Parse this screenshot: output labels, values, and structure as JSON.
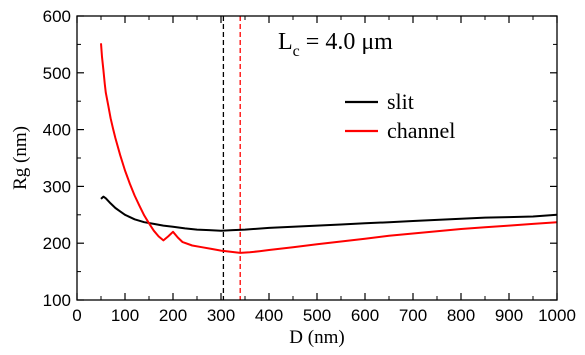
{
  "chart_data": {
    "type": "line",
    "title": "",
    "xlabel": "D (nm)",
    "ylabel": "Rg (nm)",
    "xlim": [
      0,
      1000
    ],
    "ylim": [
      100,
      600
    ],
    "x_ticks": [
      "0",
      "100",
      "200",
      "300",
      "400",
      "500",
      "600",
      "700",
      "800",
      "900",
      "1000"
    ],
    "y_ticks": [
      "100",
      "200",
      "300",
      "400",
      "500",
      "600"
    ],
    "grid": false,
    "legend_position": "top-right",
    "annotation": {
      "main": "L",
      "sub": "c",
      "rest": " = 4.0 μm"
    },
    "series": [
      {
        "name": "slit",
        "color": "#000000",
        "x": [
          50,
          55,
          60,
          70,
          80,
          90,
          100,
          120,
          140,
          160,
          180,
          200,
          225,
          250,
          275,
          300,
          325,
          350,
          400,
          450,
          500,
          550,
          600,
          650,
          700,
          750,
          800,
          850,
          900,
          950,
          1000
        ],
        "y": [
          278,
          282,
          279,
          270,
          262,
          256,
          250,
          242,
          237,
          234,
          231,
          229,
          226,
          224,
          223,
          222,
          223,
          224,
          227,
          229,
          231,
          233,
          235,
          237,
          239,
          241,
          243,
          245,
          246,
          247,
          250
        ]
      },
      {
        "name": "channel",
        "color": "#ff0000",
        "x": [
          50,
          52,
          55,
          58,
          60,
          65,
          70,
          75,
          80,
          90,
          100,
          110,
          120,
          130,
          140,
          150,
          160,
          170,
          180,
          190,
          200,
          210,
          220,
          240,
          260,
          280,
          300,
          320,
          340,
          360,
          380,
          400,
          450,
          500,
          550,
          600,
          650,
          700,
          750,
          800,
          850,
          900,
          950,
          1000
        ],
        "y": [
          552,
          528,
          505,
          480,
          465,
          443,
          420,
          402,
          385,
          355,
          328,
          305,
          284,
          266,
          249,
          235,
          222,
          212,
          205,
          212,
          220,
          210,
          202,
          196,
          193,
          190,
          187,
          185,
          183,
          184,
          186,
          188,
          193,
          198,
          203,
          208,
          213,
          217,
          221,
          225,
          228,
          231,
          234,
          237
        ]
      }
    ],
    "reference_lines": [
      {
        "x": 305,
        "color": "#000000",
        "style": "dashed"
      },
      {
        "x": 340,
        "color": "#ff0000",
        "style": "dashed"
      }
    ]
  }
}
